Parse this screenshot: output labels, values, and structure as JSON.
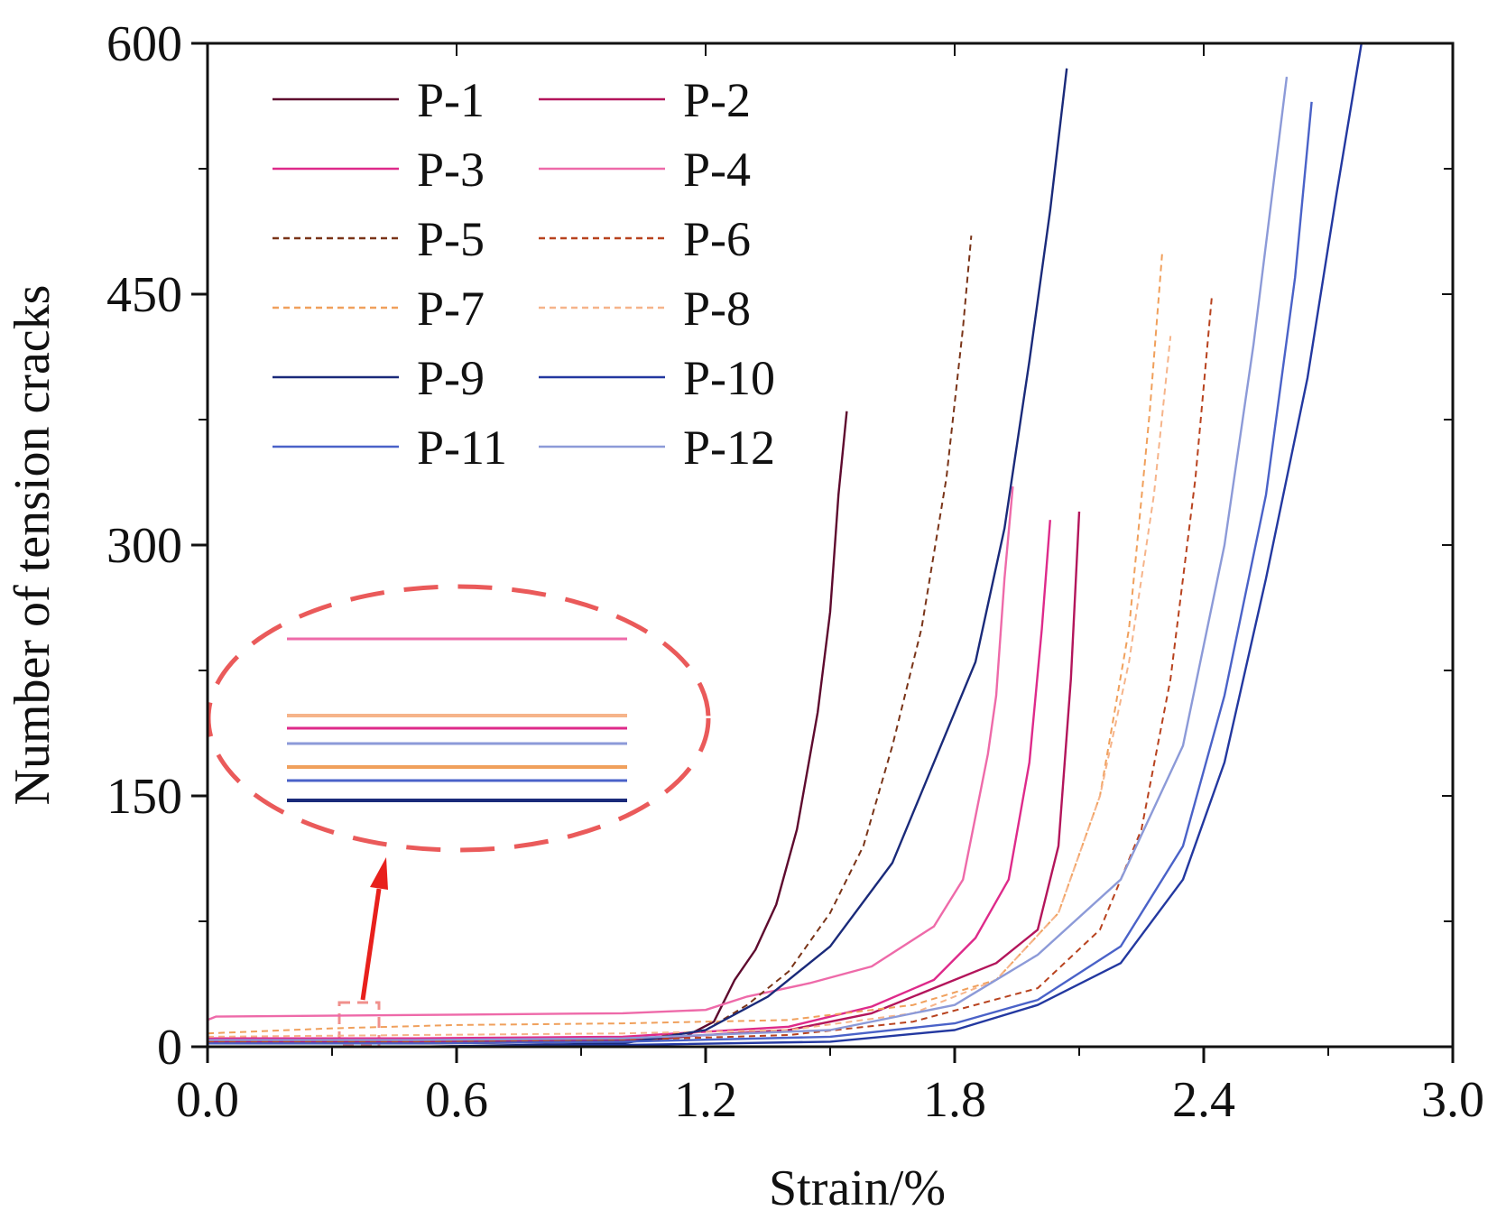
{
  "chart_data": {
    "type": "line",
    "title": "",
    "xlabel": "Strain/%",
    "ylabel": "Number of tension cracks",
    "xlim": [
      0.0,
      3.0
    ],
    "ylim": [
      0,
      600
    ],
    "x_ticks": [
      "0.0",
      "0.6",
      "1.2",
      "1.8",
      "2.4",
      "3.0"
    ],
    "y_ticks": [
      "0",
      "150",
      "300",
      "450",
      "600"
    ],
    "legend_position": "top-left",
    "inset_note": "zoomed view of initial crack counts near strain 0.3-0.45",
    "series": [
      {
        "name": "P-1",
        "color": "#5e0a2e",
        "dash": "solid",
        "x": [
          0.0,
          0.5,
          1.0,
          1.15,
          1.22,
          1.27,
          1.32,
          1.37,
          1.42,
          1.47,
          1.5,
          1.52,
          1.54
        ],
        "y": [
          2,
          2,
          3,
          6,
          15,
          40,
          58,
          85,
          130,
          200,
          260,
          330,
          380
        ]
      },
      {
        "name": "P-2",
        "color": "#b3155b",
        "dash": "solid",
        "x": [
          0.0,
          0.5,
          1.0,
          1.4,
          1.6,
          1.8,
          1.9,
          2.0,
          2.05,
          2.08,
          2.1
        ],
        "y": [
          3,
          3,
          4,
          10,
          20,
          40,
          50,
          70,
          120,
          220,
          320
        ]
      },
      {
        "name": "P-3",
        "color": "#de2a8a",
        "dash": "solid",
        "x": [
          0.0,
          0.5,
          1.0,
          1.4,
          1.6,
          1.75,
          1.85,
          1.93,
          1.98,
          2.01,
          2.03
        ],
        "y": [
          5,
          5,
          6,
          12,
          24,
          40,
          65,
          100,
          170,
          250,
          315
        ]
      },
      {
        "name": "P-4",
        "color": "#ee6aa9",
        "dash": "solid",
        "x": [
          0.0,
          0.02,
          0.5,
          1.0,
          1.2,
          1.3,
          1.45,
          1.6,
          1.75,
          1.82,
          1.88,
          1.9,
          1.92,
          1.94
        ],
        "y": [
          16,
          18,
          19,
          20,
          22,
          30,
          38,
          48,
          72,
          100,
          175,
          210,
          280,
          335
        ]
      },
      {
        "name": "P-5",
        "color": "#7a3418",
        "dash": "dashed",
        "x": [
          0.0,
          0.5,
          1.0,
          1.2,
          1.3,
          1.4,
          1.5,
          1.58,
          1.65,
          1.72,
          1.78,
          1.82,
          1.84
        ],
        "y": [
          2,
          2,
          3,
          10,
          25,
          45,
          80,
          120,
          180,
          250,
          340,
          430,
          485
        ]
      },
      {
        "name": "P-6",
        "color": "#b8421e",
        "dash": "dashed",
        "x": [
          0.0,
          0.5,
          1.0,
          1.4,
          1.7,
          2.0,
          2.15,
          2.25,
          2.32,
          2.38,
          2.42
        ],
        "y": [
          3,
          3,
          4,
          7,
          15,
          35,
          70,
          130,
          220,
          340,
          450
        ]
      },
      {
        "name": "P-7",
        "color": "#f0a05c",
        "dash": "dashed",
        "x": [
          0.0,
          0.3,
          0.6,
          1.0,
          1.4,
          1.7,
          1.9,
          2.05,
          2.15,
          2.22,
          2.27,
          2.3
        ],
        "y": [
          8,
          11,
          13,
          14,
          16,
          25,
          40,
          80,
          150,
          250,
          380,
          475
        ]
      },
      {
        "name": "P-8",
        "color": "#f6b48a",
        "dash": "dashed",
        "x": [
          0.0,
          0.5,
          1.0,
          1.4,
          1.7,
          1.9,
          2.05,
          2.15,
          2.22,
          2.28,
          2.32
        ],
        "y": [
          6,
          7,
          8,
          10,
          20,
          40,
          80,
          150,
          230,
          330,
          425
        ]
      },
      {
        "name": "P-9",
        "color": "#1a2a7a",
        "dash": "solid",
        "x": [
          0.0,
          0.5,
          1.0,
          1.2,
          1.35,
          1.5,
          1.65,
          1.75,
          1.85,
          1.92,
          1.98,
          2.03,
          2.07
        ],
        "y": [
          0,
          0,
          2,
          10,
          30,
          60,
          110,
          170,
          230,
          310,
          410,
          500,
          585
        ]
      },
      {
        "name": "P-10",
        "color": "#2338a0",
        "dash": "solid",
        "x": [
          0.0,
          0.5,
          1.0,
          1.5,
          1.8,
          2.0,
          2.2,
          2.35,
          2.45,
          2.55,
          2.65,
          2.72,
          2.78
        ],
        "y": [
          0,
          0,
          1,
          3,
          10,
          25,
          50,
          100,
          170,
          280,
          400,
          510,
          600
        ]
      },
      {
        "name": "P-11",
        "color": "#4a62c8",
        "dash": "solid",
        "x": [
          0.0,
          0.5,
          1.0,
          1.5,
          1.8,
          2.0,
          2.2,
          2.35,
          2.45,
          2.55,
          2.62,
          2.66
        ],
        "y": [
          2,
          2,
          3,
          6,
          14,
          28,
          60,
          120,
          210,
          330,
          460,
          565
        ]
      },
      {
        "name": "P-12",
        "color": "#8c9ad8",
        "dash": "solid",
        "x": [
          0.0,
          0.5,
          1.0,
          1.5,
          1.8,
          2.0,
          2.2,
          2.35,
          2.45,
          2.52,
          2.57,
          2.6
        ],
        "y": [
          4,
          4,
          5,
          10,
          25,
          55,
          100,
          180,
          300,
          420,
          520,
          580
        ]
      }
    ]
  }
}
